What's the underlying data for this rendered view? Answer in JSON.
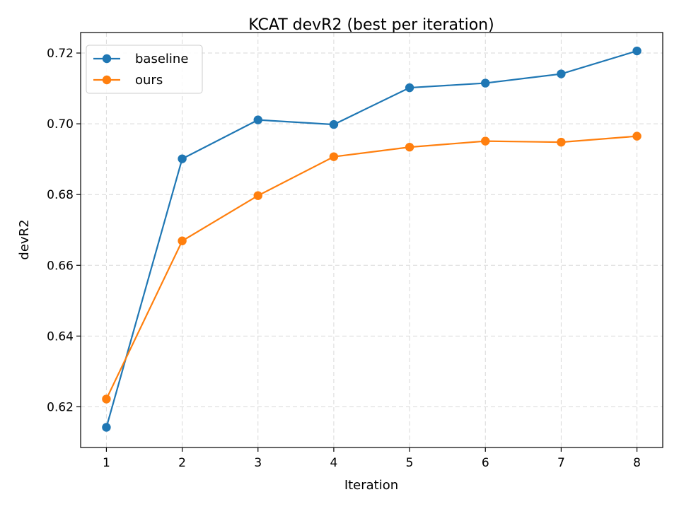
{
  "chart_data": {
    "type": "line",
    "title": "KCAT devR2 (best per iteration)",
    "xlabel": "Iteration",
    "ylabel": "devR2",
    "x": [
      1,
      2,
      3,
      4,
      5,
      6,
      7,
      8
    ],
    "xticks": [
      "1",
      "2",
      "3",
      "4",
      "5",
      "6",
      "7",
      "8"
    ],
    "xlim": [
      0.66,
      8.34
    ],
    "yticks": [
      "0.62",
      "0.64",
      "0.66",
      "0.68",
      "0.70",
      "0.72"
    ],
    "ytick_values": [
      0.62,
      0.64,
      0.66,
      0.68,
      0.7,
      0.72
    ],
    "ylim": [
      0.6085,
      0.7258
    ],
    "grid": true,
    "legend_position": "top-left",
    "series": [
      {
        "name": "baseline",
        "color": "#1f77b4",
        "marker": "circle",
        "values": [
          0.6142,
          0.6901,
          0.7011,
          0.6998,
          0.7102,
          0.7115,
          0.7141,
          0.7206
        ]
      },
      {
        "name": "ours",
        "color": "#ff7f0e",
        "marker": "circle",
        "values": [
          0.6222,
          0.6669,
          0.6797,
          0.6907,
          0.6934,
          0.6951,
          0.6948,
          0.6965
        ]
      }
    ]
  }
}
